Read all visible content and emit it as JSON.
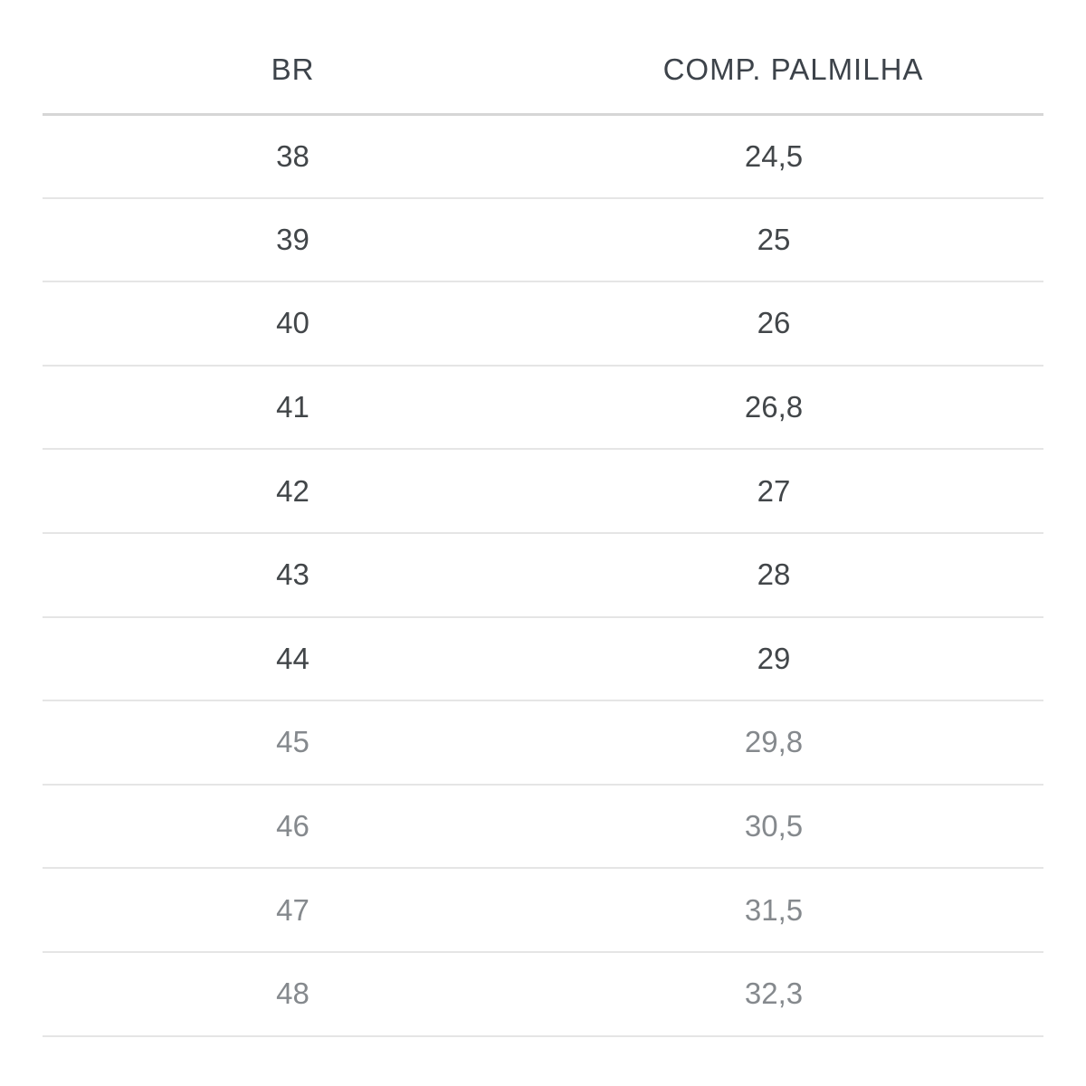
{
  "page": {
    "background": "#ffffff"
  },
  "table": {
    "columns": [
      {
        "id": "br",
        "label": "BR"
      },
      {
        "id": "comp",
        "label": "COMP. PALMILHA"
      }
    ],
    "rows": [
      {
        "br": "38",
        "comp": "24,5",
        "muted": false
      },
      {
        "br": "39",
        "comp": "25",
        "muted": false
      },
      {
        "br": "40",
        "comp": "26",
        "muted": false
      },
      {
        "br": "41",
        "comp": "26,8",
        "muted": false
      },
      {
        "br": "42",
        "comp": "27",
        "muted": false
      },
      {
        "br": "43",
        "comp": "28",
        "muted": false
      },
      {
        "br": "44",
        "comp": "29",
        "muted": false
      },
      {
        "br": "45",
        "comp": "29,8",
        "muted": true
      },
      {
        "br": "46",
        "comp": "30,5",
        "muted": true
      },
      {
        "br": "47",
        "comp": "31,5",
        "muted": true
      },
      {
        "br": "48",
        "comp": "32,3",
        "muted": true
      }
    ],
    "colors": {
      "header_text": "#3d434a",
      "row_text": "#424649",
      "muted_row_text": "#85898d",
      "header_border": "#d6d6d6",
      "row_border": "#e5e5e5",
      "background": "#ffffff"
    }
  }
}
